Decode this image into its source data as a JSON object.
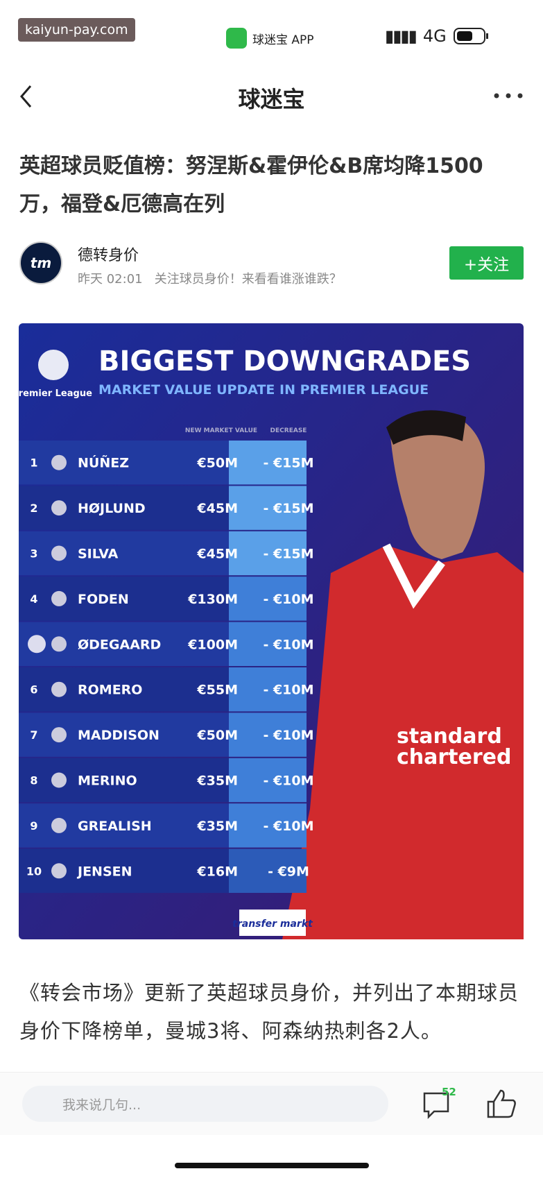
{
  "status_bar": {
    "watermark": "kaiyun-pay.com",
    "app": "球迷宝 APP",
    "network": "4G"
  },
  "nav": {
    "title": "球迷宝"
  },
  "article": {
    "title": "英超球员贬值榜：努涅斯&霍伊伦&B席均降1500万，福登&厄德高在列",
    "author": "德转身价",
    "avatar": "tm",
    "time": "昨天 02:01",
    "description": "关注球员身价！来看看谁涨谁跌？",
    "follow": "+关注",
    "body": "《转会市场》更新了英超球员身价，并列出了本期球员身价下降榜单，曼城3将、阿森纳热刺各2人。"
  },
  "infographic": {
    "league": "Premier League",
    "heading": "BIGGEST DOWNGRADES",
    "subheading": "MARKET VALUE UPDATE IN PREMIER LEAGUE",
    "col_value": "NEW MARKET VALUE",
    "col_decrease": "DECREASE",
    "source": "transfer markt",
    "rows": [
      {
        "rank": "1",
        "name": "NÚÑEZ",
        "value": "€50M",
        "decrease": "- €15M"
      },
      {
        "rank": "2",
        "name": "HØJLUND",
        "value": "€45M",
        "decrease": "- €15M"
      },
      {
        "rank": "3",
        "name": "SILVA",
        "value": "€45M",
        "decrease": "- €15M"
      },
      {
        "rank": "4",
        "name": "FODEN",
        "value": "€130M",
        "decrease": "- €10M"
      },
      {
        "rank": null,
        "name": "ØDEGAARD",
        "value": "€100M",
        "decrease": "- €10M"
      },
      {
        "rank": "6",
        "name": "ROMERO",
        "value": "€55M",
        "decrease": "- €10M"
      },
      {
        "rank": "7",
        "name": "MADDISON",
        "value": "€50M",
        "decrease": "- €10M"
      },
      {
        "rank": "8",
        "name": "MERINO",
        "value": "€35M",
        "decrease": "- €10M"
      },
      {
        "rank": "9",
        "name": "GREALISH",
        "value": "€35M",
        "decrease": "- €10M"
      },
      {
        "rank": "10",
        "name": "JENSEN",
        "value": "€16M",
        "decrease": "- €9M"
      }
    ]
  },
  "bottom_bar": {
    "placeholder": "我来说几句...",
    "comments": "52"
  }
}
